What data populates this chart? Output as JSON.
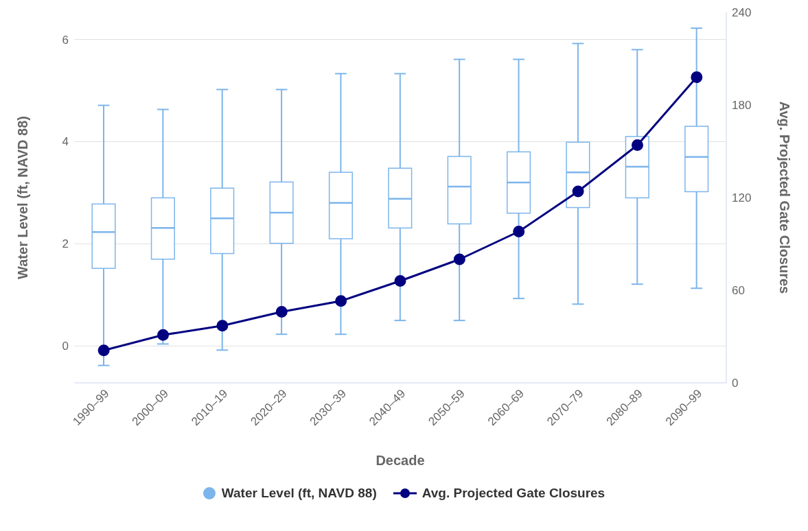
{
  "chart_data": {
    "type": "box",
    "xlabel": "Decade",
    "ylabel": "Water Level (ft, NAVD 88)",
    "y2label": "Avg. Projected Gate Closures",
    "categories": [
      "1990–99",
      "2000–09",
      "2010–19",
      "2020–29",
      "2030–39",
      "2040–49",
      "2050–59",
      "2060–69",
      "2070–79",
      "2080–89",
      "2090–99"
    ],
    "ylim": [
      -0.72,
      6.53
    ],
    "yticks": [
      0,
      2,
      4,
      6
    ],
    "y2lim": [
      0,
      240
    ],
    "y2ticks": [
      0,
      60,
      120,
      180,
      240
    ],
    "grid": true,
    "legend": "bottom",
    "marker": "circle",
    "series": [
      {
        "name": "Water Level (ft, NAVD 88)",
        "type": "box",
        "color": "#7cb5ec",
        "boxes": [
          {
            "low": -0.38,
            "q1": 1.52,
            "median": 2.23,
            "q3": 2.78,
            "high": 4.71
          },
          {
            "low": 0.04,
            "q1": 1.7,
            "median": 2.31,
            "q3": 2.9,
            "high": 4.63
          },
          {
            "low": -0.08,
            "q1": 1.81,
            "median": 2.5,
            "q3": 3.09,
            "high": 5.02
          },
          {
            "low": 0.23,
            "q1": 2.01,
            "median": 2.61,
            "q3": 3.21,
            "high": 5.02
          },
          {
            "low": 0.23,
            "q1": 2.1,
            "median": 2.8,
            "q3": 3.4,
            "high": 5.33
          },
          {
            "low": 0.5,
            "q1": 2.31,
            "median": 2.88,
            "q3": 3.48,
            "high": 5.33
          },
          {
            "low": 0.5,
            "q1": 2.39,
            "median": 3.12,
            "q3": 3.71,
            "high": 5.61
          },
          {
            "low": 0.93,
            "q1": 2.6,
            "median": 3.2,
            "q3": 3.8,
            "high": 5.61
          },
          {
            "low": 0.82,
            "q1": 2.71,
            "median": 3.4,
            "q3": 3.99,
            "high": 5.92
          },
          {
            "low": 1.21,
            "q1": 2.9,
            "median": 3.51,
            "q3": 4.1,
            "high": 5.8
          },
          {
            "low": 1.13,
            "q1": 3.02,
            "median": 3.7,
            "q3": 4.3,
            "high": 6.22
          }
        ]
      },
      {
        "name": "Avg. Projected Gate Closures",
        "type": "line",
        "axis": "y2",
        "color": "#000080",
        "values": [
          21,
          31,
          37,
          46,
          53,
          66,
          80,
          98,
          124,
          154,
          198
        ]
      }
    ]
  }
}
